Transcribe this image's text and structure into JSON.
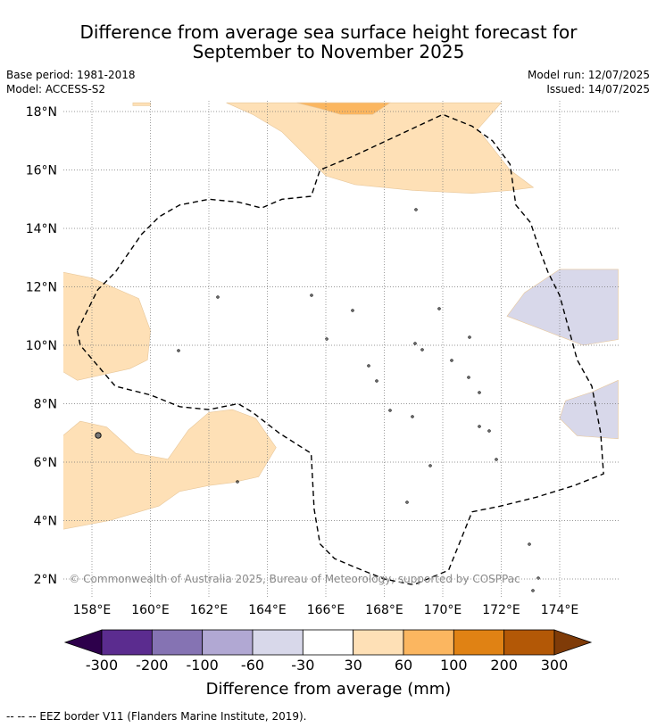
{
  "title_line1": "Difference from average sea surface height forecast for",
  "title_line2": "September to November 2025",
  "base_period": "Base period: 1981-2018",
  "model": "Model: ACCESS-S2",
  "model_run": "Model run: 12/07/2025",
  "issued": "Issued: 14/07/2025",
  "copyright": "© Commonwealth of Australia 2025, Bureau of Meteorology, supported by COSPPac",
  "footer_note": "--  --  -- EEZ border V11 (Flanders Marine Institute, 2019).",
  "chart_data": {
    "type": "map",
    "xlim": [
      157,
      176
    ],
    "ylim": [
      1.5,
      18.2
    ],
    "x_ticks": [
      158,
      160,
      162,
      164,
      166,
      168,
      170,
      172,
      174
    ],
    "x_tick_labels": [
      "158°E",
      "160°E",
      "162°E",
      "164°E",
      "166°E",
      "168°E",
      "170°E",
      "172°E",
      "174°E"
    ],
    "y_ticks": [
      2,
      4,
      6,
      8,
      10,
      12,
      14,
      16,
      18
    ],
    "y_tick_labels": [
      "2°N",
      "4°N",
      "6°N",
      "8°N",
      "10°N",
      "12°N",
      "14°N",
      "16°N",
      "18°N"
    ],
    "grid": true,
    "colorbar": {
      "label": "Difference from average (mm)",
      "bounds": [
        -300,
        -200,
        -100,
        -60,
        -30,
        30,
        60,
        100,
        200,
        300
      ],
      "tick_labels": [
        "-300",
        "-200",
        "-100",
        "-60",
        "-30",
        "30",
        "60",
        "100",
        "200",
        "300"
      ],
      "colors": [
        "#5b2c8f",
        "#8573b3",
        "#b1a8d3",
        "#d8d8ea",
        "#ffffff",
        "#fee0b6",
        "#fbb660",
        "#e08214",
        "#b35806"
      ],
      "under_color": "#2d004b",
      "over_color": "#7f3b08"
    },
    "regions": [
      {
        "level": "30 to 60",
        "color": "#fee0b6",
        "points": [
          [
            159.4,
            18.3
          ],
          [
            160.0,
            18.3
          ],
          [
            160.0,
            18.2
          ],
          [
            159.4,
            18.2
          ]
        ]
      },
      {
        "level": "30 to 60",
        "color": "#fee0b6",
        "points": [
          [
            162.6,
            18.3
          ],
          [
            172.0,
            18.3
          ],
          [
            171.2,
            17.4
          ],
          [
            172.3,
            16.0
          ],
          [
            173.1,
            15.4
          ],
          [
            172.3,
            15.3
          ],
          [
            171.0,
            15.2
          ],
          [
            169.0,
            15.3
          ],
          [
            167.0,
            15.5
          ],
          [
            166.0,
            15.8
          ],
          [
            165.3,
            16.5
          ],
          [
            164.5,
            17.3
          ],
          [
            163.5,
            17.9
          ]
        ]
      },
      {
        "level": "60 to 100",
        "color": "#fbb660",
        "points": [
          [
            165.0,
            18.3
          ],
          [
            168.2,
            18.3
          ],
          [
            167.6,
            17.9
          ],
          [
            166.5,
            17.9
          ],
          [
            165.8,
            18.1
          ]
        ]
      },
      {
        "level": "30 to 60",
        "color": "#fee0b6",
        "points": [
          [
            157.0,
            12.5
          ],
          [
            158.0,
            12.3
          ],
          [
            159.6,
            11.6
          ],
          [
            160.0,
            10.5
          ],
          [
            159.9,
            9.5
          ],
          [
            159.3,
            9.2
          ],
          [
            157.5,
            8.8
          ],
          [
            157.0,
            9.1
          ]
        ]
      },
      {
        "level": "30 to 60",
        "color": "#fee0b6",
        "points": [
          [
            157.0,
            6.9
          ],
          [
            157.6,
            7.4
          ],
          [
            158.5,
            7.2
          ],
          [
            159.5,
            6.3
          ],
          [
            160.6,
            6.1
          ],
          [
            161.3,
            7.1
          ],
          [
            162.0,
            7.7
          ],
          [
            162.8,
            7.8
          ],
          [
            163.6,
            7.5
          ],
          [
            164.3,
            6.5
          ],
          [
            163.7,
            5.5
          ],
          [
            162.8,
            5.3
          ],
          [
            162.0,
            5.2
          ],
          [
            161.0,
            5.0
          ],
          [
            160.3,
            4.5
          ],
          [
            158.6,
            4.0
          ],
          [
            157.0,
            3.7
          ]
        ]
      },
      {
        "level": "-60 to -30",
        "color": "#d8d8ea",
        "points": [
          [
            176.0,
            12.6
          ],
          [
            174.0,
            12.6
          ],
          [
            172.8,
            11.8
          ],
          [
            172.2,
            11.0
          ],
          [
            173.5,
            10.5
          ],
          [
            174.8,
            10.0
          ],
          [
            176.0,
            10.2
          ]
        ]
      },
      {
        "level": "-60 to -30",
        "color": "#d8d8ea",
        "points": [
          [
            176.0,
            8.8
          ],
          [
            175.1,
            8.4
          ],
          [
            174.2,
            8.1
          ],
          [
            174.0,
            7.5
          ],
          [
            174.6,
            6.9
          ],
          [
            176.0,
            6.8
          ]
        ]
      }
    ],
    "eez_border": [
      [
        157.5,
        10.5
      ],
      [
        158.2,
        11.9
      ],
      [
        158.8,
        12.5
      ],
      [
        159.7,
        13.8
      ],
      [
        160.3,
        14.4
      ],
      [
        161.0,
        14.8
      ],
      [
        162.0,
        15.0
      ],
      [
        163.0,
        14.9
      ],
      [
        163.8,
        14.7
      ],
      [
        164.5,
        15.0
      ],
      [
        165.5,
        15.1
      ],
      [
        165.8,
        16.0
      ],
      [
        167.0,
        16.5
      ],
      [
        168.5,
        17.2
      ],
      [
        170.0,
        17.9
      ],
      [
        171.0,
        17.5
      ],
      [
        171.7,
        17.0
      ],
      [
        172.3,
        16.2
      ],
      [
        172.5,
        14.8
      ],
      [
        173.0,
        14.2
      ],
      [
        173.3,
        13.3
      ],
      [
        173.6,
        12.5
      ],
      [
        174.0,
        11.7
      ],
      [
        174.6,
        9.5
      ],
      [
        175.1,
        8.6
      ],
      [
        175.4,
        7.0
      ],
      [
        175.5,
        5.6
      ],
      [
        174.5,
        5.2
      ],
      [
        173.2,
        4.8
      ],
      [
        172.0,
        4.5
      ],
      [
        171.0,
        4.3
      ],
      [
        170.2,
        2.3
      ],
      [
        169.0,
        1.8
      ],
      [
        168.0,
        2.0
      ],
      [
        167.0,
        2.4
      ],
      [
        166.3,
        2.7
      ],
      [
        165.8,
        3.2
      ],
      [
        165.6,
        4.4
      ],
      [
        165.5,
        6.3
      ],
      [
        164.4,
        7.0
      ],
      [
        163.5,
        7.7
      ],
      [
        163.0,
        8.0
      ],
      [
        162.0,
        7.8
      ],
      [
        161.0,
        7.9
      ],
      [
        160.0,
        8.3
      ],
      [
        158.8,
        8.6
      ],
      [
        157.6,
        10.0
      ]
    ]
  }
}
